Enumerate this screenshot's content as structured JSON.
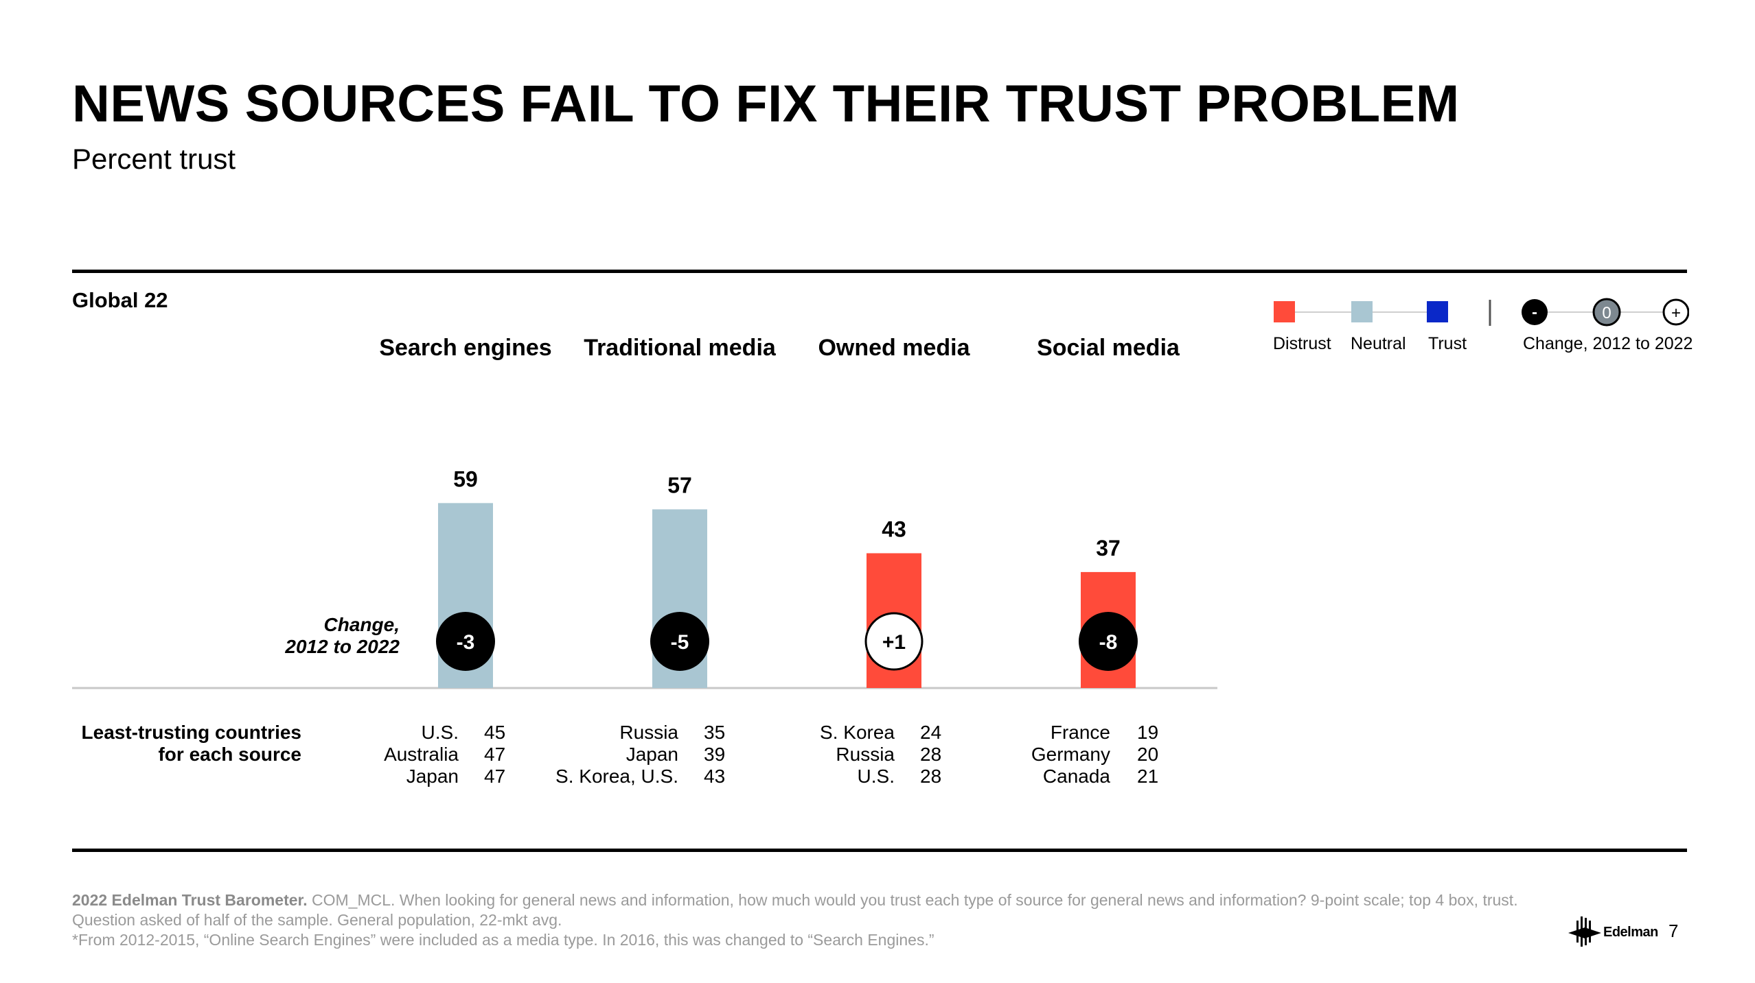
{
  "header": {
    "title": "NEWS SOURCES FAIL TO FIX THEIR TRUST  PROBLEM",
    "subtitle": "Percent trust",
    "global_label": "Global 22"
  },
  "legend": {
    "distrust_label": "Distrust",
    "neutral_label": "Neutral",
    "trust_label": "Trust",
    "change_label": "Change, 2012 to 2022",
    "minus_symbol": "-",
    "zero_symbol": "0",
    "plus_symbol": "+",
    "colors": {
      "distrust": "#ff4b3a",
      "neutral": "#a9c6d2",
      "trust": "#0a28c8",
      "change_circle": "#000000"
    }
  },
  "captions": {
    "change_line1": "Change,",
    "change_line2": "2012 to 2022",
    "least_line1": "Least-trusting countries",
    "least_line2": "for each source"
  },
  "chart_data": {
    "type": "bar",
    "title": "NEWS SOURCES FAIL TO FIX THEIR TRUST  PROBLEM",
    "subtitle": "Percent trust",
    "categories": [
      "Search engines",
      "Traditional media",
      "Owned media",
      "Social media"
    ],
    "values": [
      59,
      57,
      43,
      37
    ],
    "value_labels": [
      "59",
      "57",
      "43",
      "37"
    ],
    "zones": [
      "Neutral",
      "Neutral",
      "Distrust",
      "Distrust"
    ],
    "colors": [
      "#a9c6d2",
      "#a9c6d2",
      "#ff4b3a",
      "#ff4b3a"
    ],
    "change_2012_2022": [
      "-3",
      "-5",
      "+1",
      "-8"
    ],
    "change_style": [
      "negative",
      "negative",
      "positive",
      "negative"
    ],
    "ylim": [
      0,
      100
    ],
    "grid": false,
    "legend_position": "top-right"
  },
  "least_trusting": [
    {
      "countries": [
        "U.S.",
        "Australia",
        "Japan"
      ],
      "values": [
        "45",
        "47",
        "47"
      ]
    },
    {
      "countries": [
        "Russia",
        "Japan",
        "S. Korea, U.S."
      ],
      "values": [
        "35",
        "39",
        "43"
      ]
    },
    {
      "countries": [
        "S. Korea",
        "Russia",
        "U.S."
      ],
      "values": [
        "24",
        "28",
        "28"
      ]
    },
    {
      "countries": [
        "France",
        "Germany",
        "Canada"
      ],
      "values": [
        "19",
        "20",
        "21"
      ]
    }
  ],
  "footnote": {
    "source_bold": "2022 Edelman Trust Barometer.",
    "source_text": " COM_MCL. When looking for general news and information, how much would you trust each type of source for general news and information? 9-point scale; top 4 box, trust. Question asked of half of the sample. General population, 22-mkt avg.",
    "note": "*From 2012-2015, “Online Search Engines” were included as a media type. In 2016, this was changed to “Search Engines.”"
  },
  "branding": {
    "logo_text": "Edelman",
    "page_number": "7"
  }
}
